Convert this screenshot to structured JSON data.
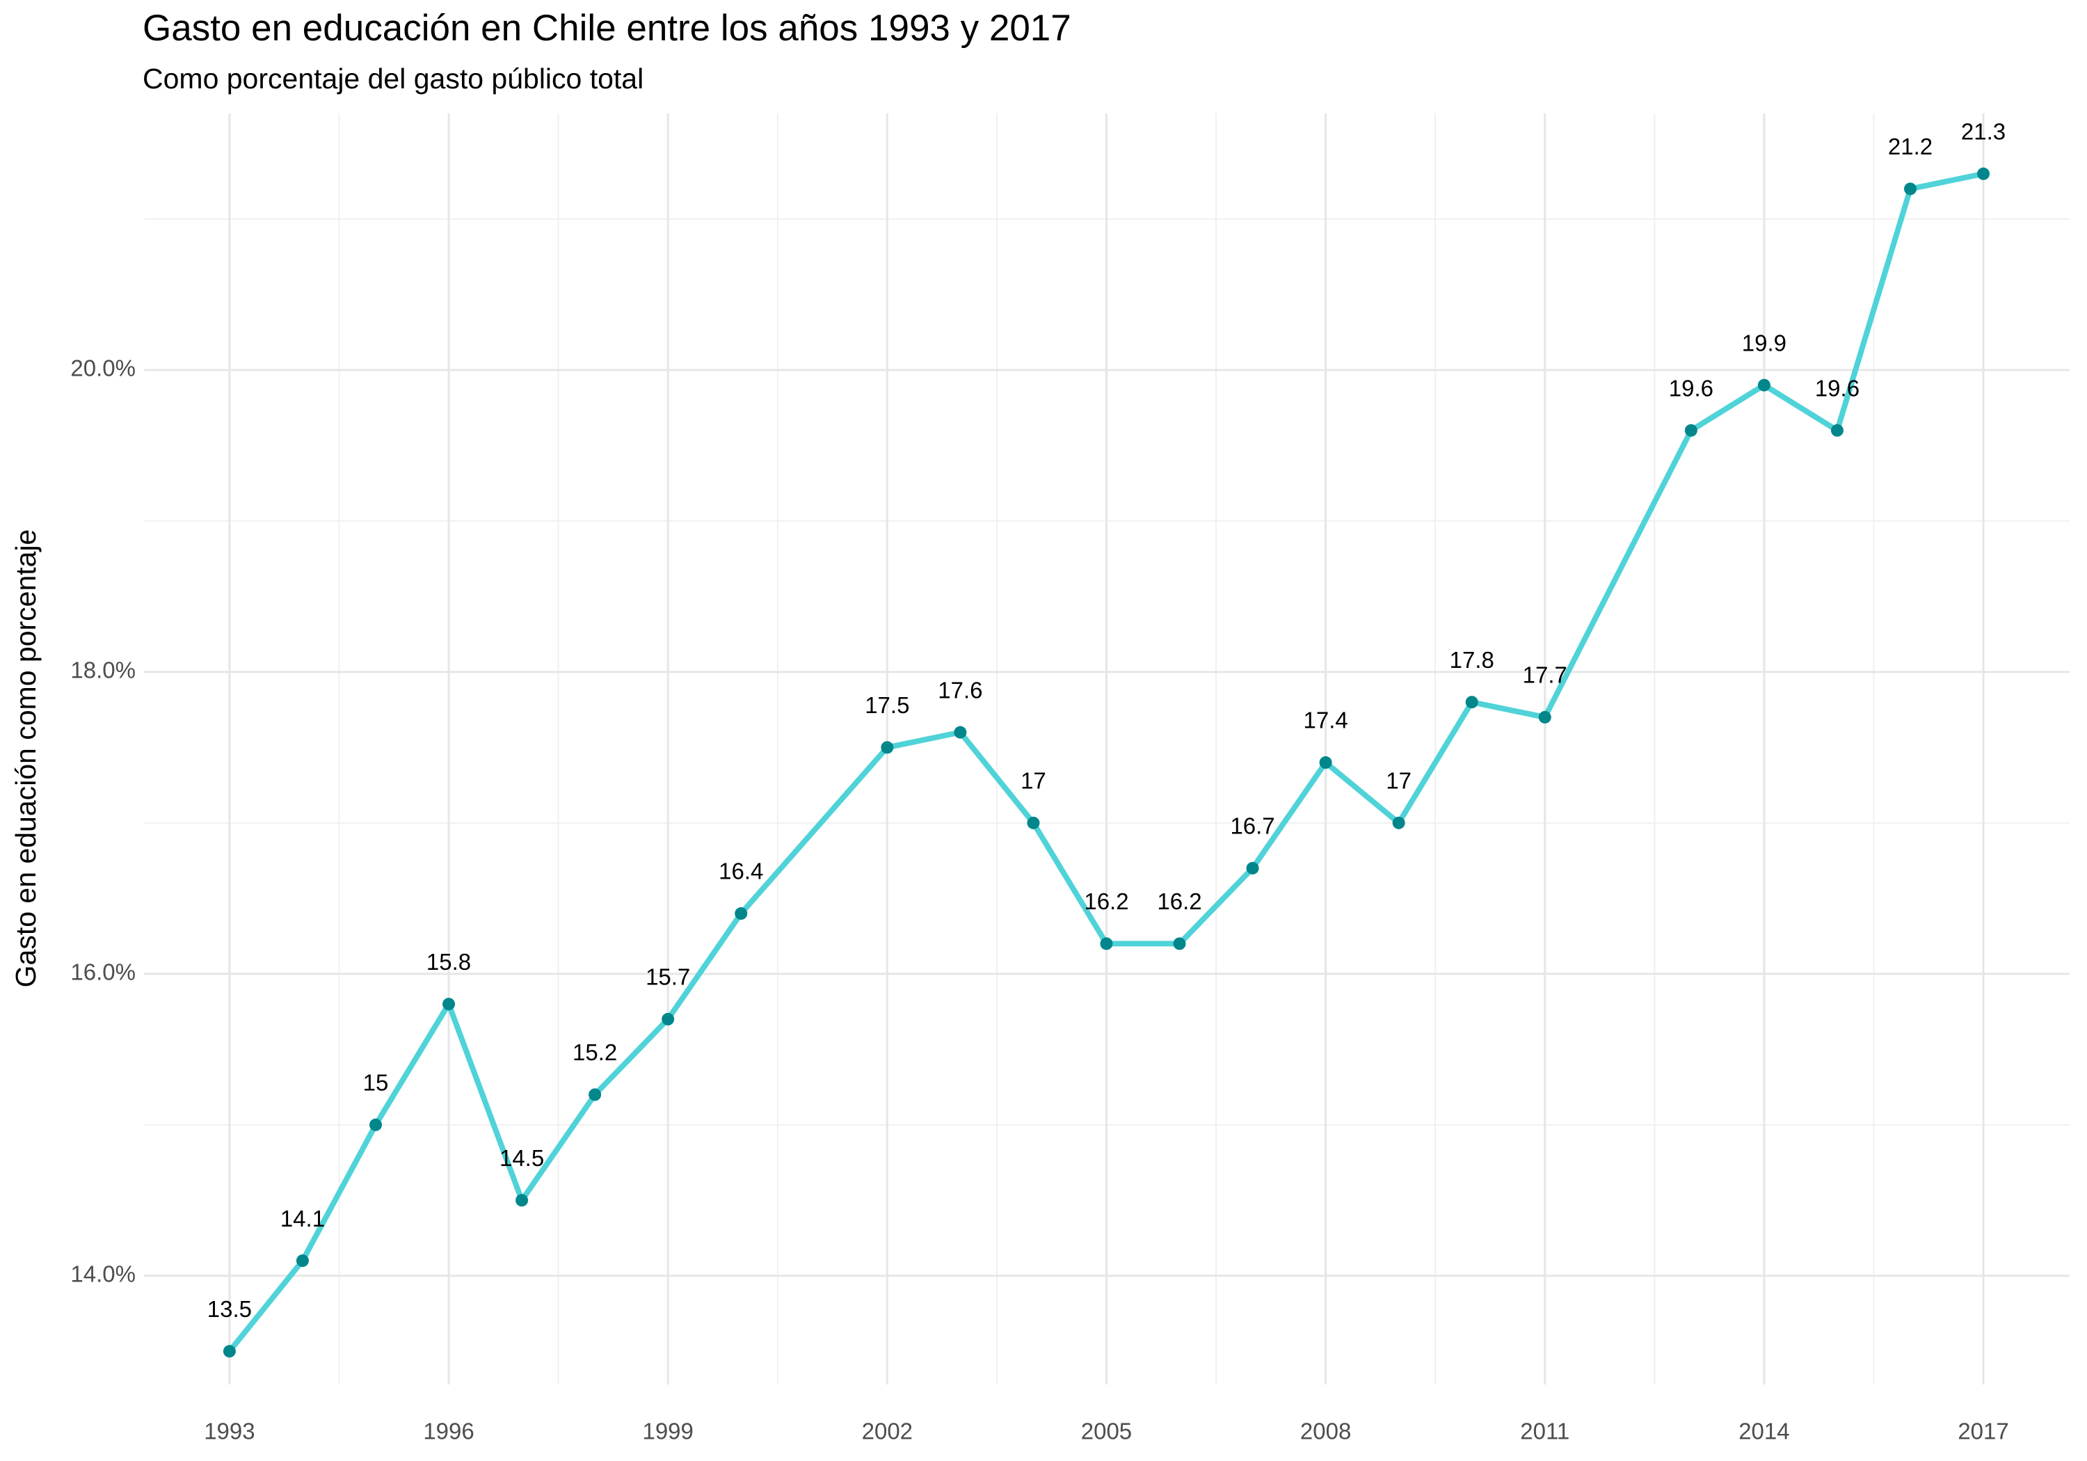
{
  "chart_data": {
    "type": "line",
    "title": "Gasto en educación en Chile entre los años 1993 y 2017",
    "subtitle": "Como porcentaje del gasto público total",
    "y_label": "Gasto en eduación como porcentaje",
    "x": [
      1993,
      1994,
      1995,
      1996,
      1997,
      1998,
      1999,
      2000,
      2002,
      2003,
      2004,
      2005,
      2006,
      2007,
      2008,
      2009,
      2010,
      2011,
      2013,
      2014,
      2015,
      2016,
      2017
    ],
    "series": [
      {
        "line_color": "#4fd3d8",
        "color": "#00868b",
        "values": [
          13.5,
          14.1,
          15,
          15.8,
          14.5,
          15.2,
          15.7,
          16.4,
          17.5,
          17.6,
          17,
          16.2,
          16.2,
          16.7,
          17.4,
          17,
          17.8,
          17.7,
          19.6,
          19.9,
          19.6,
          21.2,
          21.3
        ]
      }
    ],
    "xlim": [
      1991.83,
      2018.18
    ],
    "xticks": [
      1993,
      1996,
      1999,
      2002,
      2005,
      2008,
      2011,
      2014,
      2017
    ],
    "ylim": [
      13.28,
      21.7
    ],
    "yticks": [
      {
        "value": 14,
        "label": "14.0%"
      },
      {
        "value": 16,
        "label": "16.0%"
      },
      {
        "value": 18,
        "label": "18.0%"
      },
      {
        "value": 20,
        "label": "20.0%"
      }
    ],
    "grid": true
  }
}
